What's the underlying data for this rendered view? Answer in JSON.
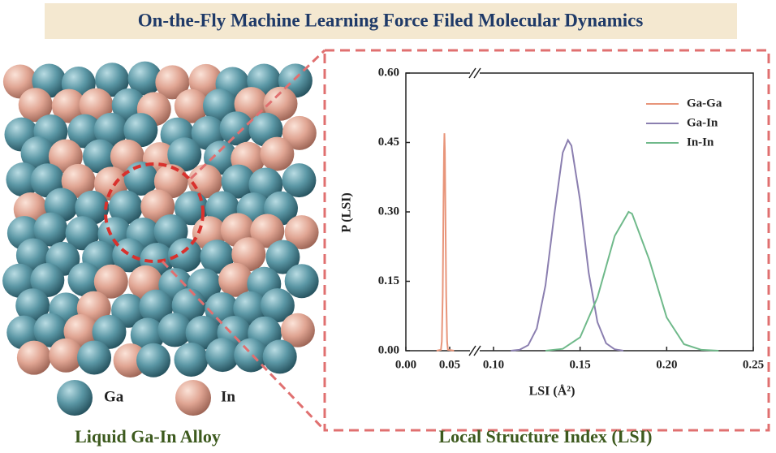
{
  "header": {
    "title": "On-the-Fly Machine Learning Force Filed Molecular Dynamics"
  },
  "illustration": {
    "legend": [
      "Ga",
      "In"
    ],
    "caption": "Liquid Ga-In Alloy"
  },
  "chart_data": {
    "type": "line",
    "title": "Local Structure Index (LSI)",
    "x_label": "LSI (Å²)",
    "y_label": "P (LSI)",
    "xlim": [
      0,
      0.25
    ],
    "ylim": [
      0,
      0.6
    ],
    "x_break": 0.1,
    "xticks": [
      {
        "value": 0,
        "label": "0.00"
      },
      0.05,
      {
        "value": 0.1,
        "label": "0.10"
      },
      0.15,
      {
        "value": 0.2,
        "label": "0.20"
      },
      0.25
    ],
    "yticks": [
      {
        "value": 0,
        "label": "0.00"
      },
      0.15,
      {
        "value": 0.3,
        "label": "0.30"
      },
      0.45,
      {
        "value": 0.6,
        "label": "0.60"
      }
    ],
    "legend": "upper right",
    "series": [
      {
        "name": "Ga-Ga",
        "color": "#e8957a",
        "x": [
          0.035,
          0.04,
          0.041,
          0.042,
          0.043,
          0.0435,
          0.044,
          0.0445,
          0.045,
          0.046,
          0.047,
          0.048,
          0.055
        ],
        "values": [
          0,
          0.002,
          0.02,
          0.12,
          0.33,
          0.43,
          0.47,
          0.43,
          0.33,
          0.12,
          0.02,
          0.002,
          0
        ]
      },
      {
        "name": "Ga-In",
        "color": "#8b7fb0",
        "x": [
          0.11,
          0.115,
          0.12,
          0.125,
          0.13,
          0.135,
          0.14,
          0.143,
          0.145,
          0.15,
          0.155,
          0.16,
          0.165,
          0.17,
          0.175
        ],
        "values": [
          0,
          0.002,
          0.012,
          0.048,
          0.141,
          0.292,
          0.428,
          0.455,
          0.443,
          0.324,
          0.168,
          0.062,
          0.016,
          0.003,
          0
        ]
      },
      {
        "name": "In-In",
        "color": "#6fb98a",
        "x": [
          0.13,
          0.14,
          0.15,
          0.16,
          0.17,
          0.178,
          0.18,
          0.19,
          0.2,
          0.21,
          0.22,
          0.23
        ],
        "values": [
          0,
          0.004,
          0.029,
          0.115,
          0.248,
          0.3,
          0.296,
          0.196,
          0.072,
          0.014,
          0.002,
          0
        ]
      }
    ]
  }
}
